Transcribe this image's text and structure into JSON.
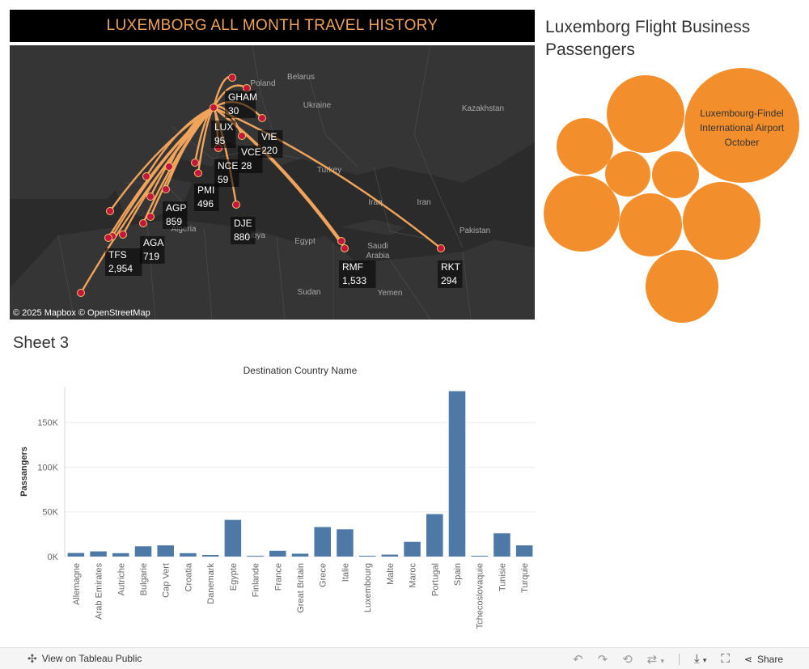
{
  "map": {
    "title": "LUXEMBORG ALL MONTH TRAVEL HISTORY",
    "attribution": "© 2025 Mapbox  © OpenStreetMap",
    "colors": {
      "background": "#2b2b2b",
      "land": "#353535",
      "route": "#f0a35b",
      "dot": "#c4173b",
      "title": "#f0a35b"
    },
    "geo_labels": [
      "Belarus",
      "Poland",
      "Ukraine",
      "Kazakhstan",
      "Turkey",
      "Iraq",
      "Iran",
      "Algeria",
      "Libya",
      "Egypt",
      "Saudi Arabia",
      "Pakistan",
      "Sudan",
      "Yemen"
    ],
    "airports": [
      {
        "code": "GHAM",
        "value": "30"
      },
      {
        "code": "LUX",
        "value": "95"
      },
      {
        "code": "VIE",
        "value": "220"
      },
      {
        "code": "VCE",
        "value": "28"
      },
      {
        "code": "NCE",
        "value": "59"
      },
      {
        "code": "PMI",
        "value": "496"
      },
      {
        "code": "AGP",
        "value": "859"
      },
      {
        "code": "DJE",
        "value": "880"
      },
      {
        "code": "AGA",
        "value": "719"
      },
      {
        "code": "TFS",
        "value": "2,954"
      },
      {
        "code": "RMF",
        "value": "1,533"
      },
      {
        "code": "RKT",
        "value": "294"
      }
    ]
  },
  "bubbles": {
    "title": "Luxemborg Flight Business Passengers",
    "color": "#f28e2b",
    "label_line1": "Luxembourg-Findel",
    "label_line2": "International Airport",
    "label_line3": "October"
  },
  "sheet3": {
    "title": "Sheet 3"
  },
  "chart_data": {
    "type": "bar",
    "title": "Destination Country Name",
    "xlabel": "",
    "ylabel": "Passangers",
    "ylim": [
      0,
      190000
    ],
    "yticks": [
      0,
      50000,
      100000,
      150000
    ],
    "ytick_labels": [
      "0K",
      "50K",
      "100K",
      "150K"
    ],
    "grid": true,
    "color": "#4e79a7",
    "categories": [
      "Allemagne",
      "Arab Emirates",
      "Autriche",
      "Bulgarie",
      "Cap Vert",
      "Croatia",
      "Danemark",
      "Egypte",
      "Finlande",
      "France",
      "Great Britain",
      "Grece",
      "Italie",
      "Luxembourg",
      "Malte",
      "Maroc",
      "Portugal",
      "Spain",
      "Tchecoslovaquie",
      "Tunisie",
      "Turquie"
    ],
    "values": [
      4000,
      5800,
      3800,
      11500,
      12500,
      3800,
      1800,
      41000,
      800,
      6500,
      3200,
      33000,
      30500,
      900,
      2200,
      16500,
      47500,
      185000,
      900,
      26000,
      12500
    ]
  },
  "footer": {
    "view_label": "View on Tableau Public",
    "share_label": "Share"
  }
}
